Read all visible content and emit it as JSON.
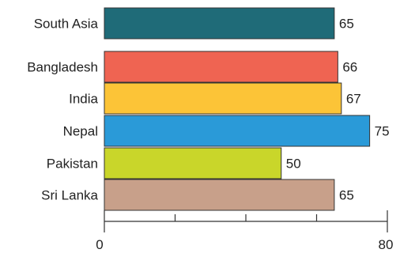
{
  "chart_data": {
    "type": "bar",
    "orientation": "horizontal",
    "categories": [
      "South Asia",
      "Bangladesh",
      "India",
      "Nepal",
      "Pakistan",
      "Sri Lanka"
    ],
    "values": [
      65,
      66,
      67,
      75,
      50,
      65
    ],
    "colors": [
      "#1f6b78",
      "#ef6452",
      "#fcc437",
      "#2a9ad8",
      "#c9d62a",
      "#c8a08a"
    ],
    "xlim": [
      0,
      80
    ],
    "x_tick_labels": [
      "0",
      "80"
    ],
    "x_minor_ticks": [
      0,
      20,
      40,
      60,
      80
    ],
    "title": "",
    "xlabel": "",
    "ylabel": "",
    "grid": false,
    "legend": "none"
  }
}
